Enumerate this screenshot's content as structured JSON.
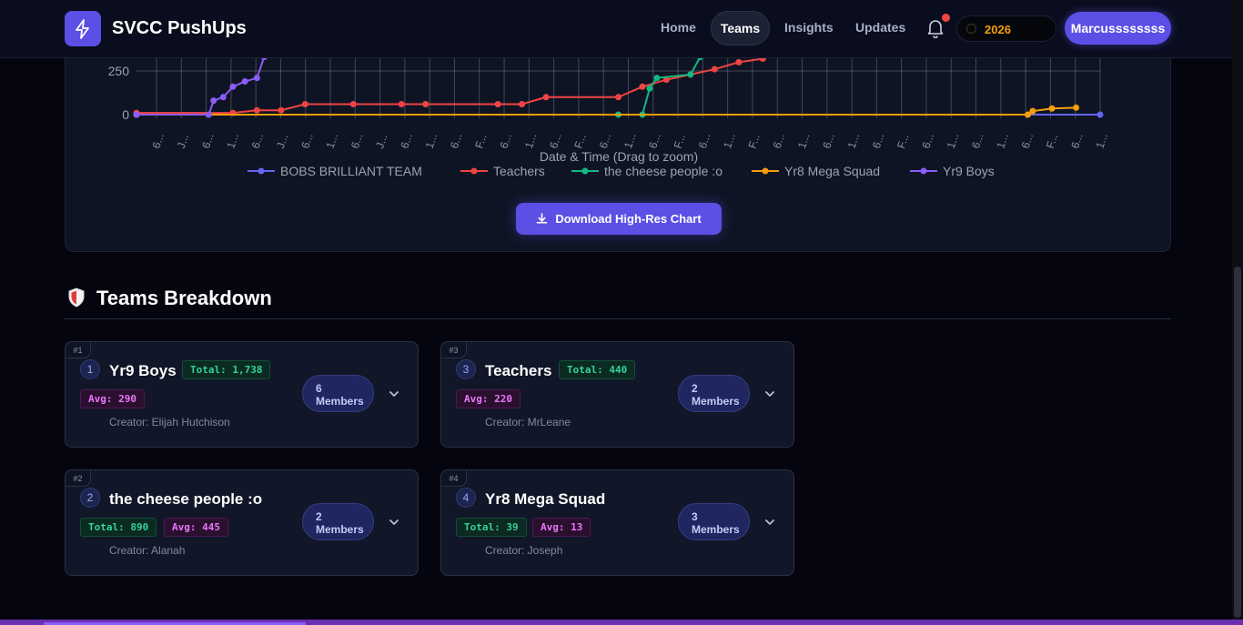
{
  "nav": {
    "brand": "SVCC PushUps",
    "links": [
      "Home",
      "Teams",
      "Insights",
      "Updates"
    ],
    "active": "Teams",
    "year": "2026",
    "user": "Marcussssssss"
  },
  "chart_data": {
    "type": "line",
    "xlabel": "Date & Time (Drag to zoom)",
    "ylabel": "",
    "y_ticks": [
      0,
      250
    ],
    "x_tick_labels": [
      "6...",
      "J...",
      "6...",
      "1...",
      "6...",
      "J...",
      "6...",
      "1...",
      "6...",
      "J...",
      "6...",
      "1...",
      "6...",
      "F...",
      "6...",
      "1...",
      "6...",
      "F...",
      "6...",
      "1...",
      "6...",
      "F...",
      "6...",
      "1...",
      "F...",
      "6...",
      "1...",
      "6...",
      "1...",
      "6...",
      "F...",
      "6...",
      "1...",
      "6...",
      "1...",
      "6...",
      "F...",
      "6...",
      "1..."
    ],
    "series": [
      {
        "name": "BOBS BRILLIANT TEAM",
        "color": "#6366f1",
        "values": [
          [
            0,
            0
          ],
          [
            40,
            0
          ]
        ]
      },
      {
        "name": "Teachers",
        "color": "#ef4444",
        "values": [
          [
            0,
            10
          ],
          [
            4,
            10
          ],
          [
            5,
            25
          ],
          [
            6,
            25
          ],
          [
            7,
            60
          ],
          [
            9,
            60
          ],
          [
            11,
            60
          ],
          [
            12,
            60
          ],
          [
            15,
            60
          ],
          [
            16,
            60
          ],
          [
            17,
            100
          ],
          [
            20,
            100
          ],
          [
            21,
            160
          ],
          [
            22,
            200
          ],
          [
            23,
            230
          ],
          [
            24,
            260
          ],
          [
            25,
            300
          ],
          [
            26,
            320
          ]
        ]
      },
      {
        "name": "the cheese people :o",
        "color": "#10b981",
        "values": [
          [
            20,
            0
          ],
          [
            21,
            0
          ],
          [
            21.3,
            150
          ],
          [
            21.6,
            210
          ],
          [
            23,
            230
          ],
          [
            23.4,
            330
          ]
        ]
      },
      {
        "name": "Yr8 Mega Squad",
        "color": "#f59e0b",
        "values": [
          [
            0,
            0
          ],
          [
            37,
            0
          ],
          [
            37.2,
            20
          ],
          [
            38,
            35
          ],
          [
            39,
            40
          ]
        ]
      },
      {
        "name": "Yr9 Boys",
        "color": "#8b5cf6",
        "values": [
          [
            0,
            0
          ],
          [
            3,
            0
          ],
          [
            3.2,
            80
          ],
          [
            3.6,
            100
          ],
          [
            4,
            160
          ],
          [
            4.5,
            190
          ],
          [
            5,
            210
          ],
          [
            5.3,
            330
          ]
        ]
      }
    ]
  },
  "chart": {
    "download_label": "Download High-Res Chart"
  },
  "teams_section": {
    "title": "Teams Breakdown",
    "teams": [
      {
        "rank_tag": "#1",
        "num": "1",
        "name": "Yr9 Boys",
        "total": "Total: 1,738",
        "avg": "Avg: 290",
        "creator": "Creator: Elijah Hutchison",
        "members_count": "6",
        "members_label": "Members"
      },
      {
        "rank_tag": "#3",
        "num": "3",
        "name": "Teachers",
        "total": "Total: 440",
        "avg": "Avg: 220",
        "creator": "Creator: MrLeane",
        "members_count": "2",
        "members_label": "Members"
      },
      {
        "rank_tag": "#2",
        "num": "2",
        "name": "the cheese people :o",
        "total": "Total: 890",
        "avg": "Avg: 445",
        "creator": "Creator: Alanah",
        "members_count": "2",
        "members_label": "Members"
      },
      {
        "rank_tag": "#4",
        "num": "4",
        "name": "Yr8 Mega Squad",
        "total": "Total: 39",
        "avg": "Avg: 13",
        "creator": "Creator: Joseph",
        "members_count": "3",
        "members_label": "Members"
      }
    ]
  }
}
